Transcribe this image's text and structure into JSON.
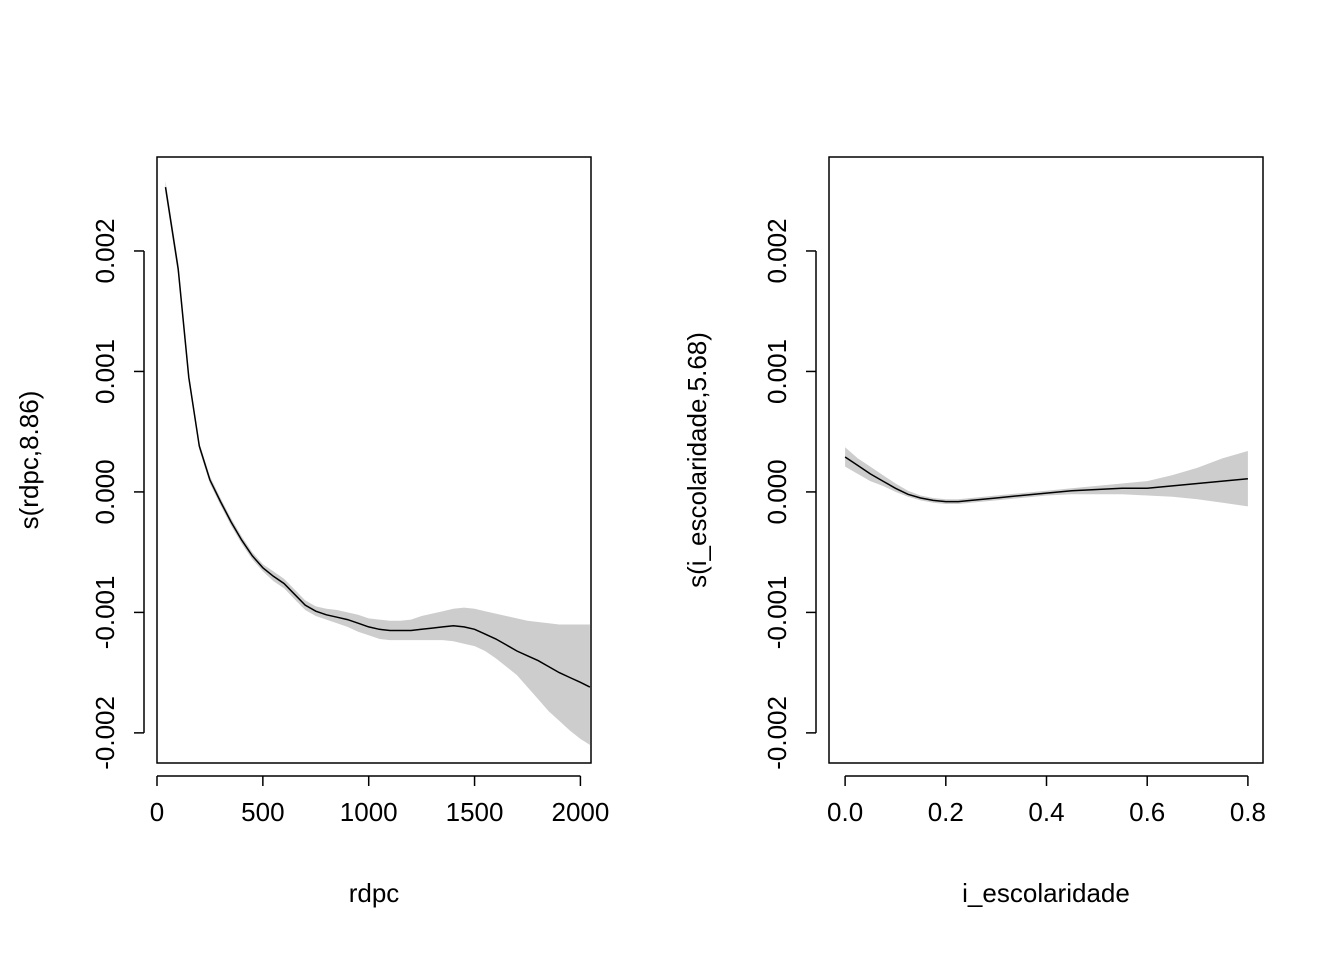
{
  "chart_data": [
    {
      "type": "line",
      "xlabel": "rdpc",
      "ylabel": "s(rdpc,8.86)",
      "xlim": [
        0,
        2050
      ],
      "ylim": [
        -0.00225,
        0.00278
      ],
      "xticks": [
        0,
        500,
        1000,
        1500,
        2000
      ],
      "xtick_labels": [
        "0",
        "500",
        "1000",
        "1500",
        "2000"
      ],
      "yticks": [
        -0.002,
        -0.001,
        0.0,
        0.001,
        0.002
      ],
      "ytick_labels": [
        "-0.002",
        "-0.001",
        "0.000",
        "0.001",
        "0.002"
      ],
      "series": [
        {
          "x": [
            40,
            100,
            150,
            200,
            250,
            300,
            350,
            400,
            450,
            500,
            550,
            600,
            650,
            700,
            750,
            800,
            850,
            900,
            950,
            1000,
            1050,
            1100,
            1150,
            1200,
            1250,
            1300,
            1350,
            1400,
            1450,
            1500,
            1550,
            1600,
            1650,
            1700,
            1750,
            1800,
            1850,
            1900,
            1950,
            2000,
            2045
          ],
          "y": [
            0.00253,
            0.00185,
            0.00095,
            0.00038,
            0.0001,
            -8e-05,
            -0.00025,
            -0.0004,
            -0.00053,
            -0.00063,
            -0.0007,
            -0.00076,
            -0.00085,
            -0.00094,
            -0.00099,
            -0.00102,
            -0.00104,
            -0.00106,
            -0.00109,
            -0.00112,
            -0.00114,
            -0.00115,
            -0.00115,
            -0.00115,
            -0.00114,
            -0.00113,
            -0.00112,
            -0.00111,
            -0.00112,
            -0.00114,
            -0.00118,
            -0.00122,
            -0.00127,
            -0.00132,
            -0.00136,
            -0.0014,
            -0.00145,
            -0.0015,
            -0.00154,
            -0.00158,
            -0.00162
          ],
          "lower": [
            0.00248,
            0.0018,
            0.00091,
            0.00035,
            7e-05,
            -0.00011,
            -0.00028,
            -0.00043,
            -0.00056,
            -0.00066,
            -0.00074,
            -0.0008,
            -0.00089,
            -0.00098,
            -0.00103,
            -0.00106,
            -0.00109,
            -0.00112,
            -0.00116,
            -0.00119,
            -0.00122,
            -0.00123,
            -0.00123,
            -0.00123,
            -0.00123,
            -0.00123,
            -0.00123,
            -0.00124,
            -0.00126,
            -0.00128,
            -0.00132,
            -0.00138,
            -0.00145,
            -0.00152,
            -0.00162,
            -0.00172,
            -0.00182,
            -0.0019,
            -0.00198,
            -0.00205,
            -0.0021
          ],
          "upper": [
            0.00258,
            0.0019,
            0.00099,
            0.00041,
            0.00013,
            -5e-05,
            -0.00022,
            -0.00037,
            -0.0005,
            -0.0006,
            -0.00066,
            -0.00072,
            -0.00081,
            -0.0009,
            -0.00095,
            -0.00097,
            -0.00098,
            -0.001,
            -0.00102,
            -0.00105,
            -0.00106,
            -0.00107,
            -0.00107,
            -0.00106,
            -0.00103,
            -0.00101,
            -0.00099,
            -0.00097,
            -0.00096,
            -0.00097,
            -0.00099,
            -0.00101,
            -0.00103,
            -0.00105,
            -0.00107,
            -0.00108,
            -0.00109,
            -0.0011,
            -0.0011,
            -0.0011,
            -0.0011
          ]
        }
      ]
    },
    {
      "type": "line",
      "xlabel": "i_escolaridade",
      "ylabel": "s(i_escolaridade,5.68)",
      "xlim": [
        -0.032,
        0.83
      ],
      "ylim": [
        -0.00225,
        0.00278
      ],
      "xticks": [
        0.0,
        0.2,
        0.4,
        0.6,
        0.8
      ],
      "xtick_labels": [
        "0.0",
        "0.2",
        "0.4",
        "0.6",
        "0.8"
      ],
      "yticks": [
        -0.002,
        -0.001,
        0.0,
        0.001,
        0.002
      ],
      "ytick_labels": [
        "-0.002",
        "-0.001",
        "0.000",
        "0.001",
        "0.002"
      ],
      "series": [
        {
          "x": [
            0.0,
            0.025,
            0.05,
            0.075,
            0.1,
            0.125,
            0.15,
            0.175,
            0.2,
            0.225,
            0.25,
            0.3,
            0.35,
            0.4,
            0.45,
            0.5,
            0.55,
            0.6,
            0.65,
            0.7,
            0.75,
            0.8
          ],
          "y": [
            0.00029,
            0.00022,
            0.00015,
            9e-05,
            3e-05,
            -2e-05,
            -5e-05,
            -7e-05,
            -8e-05,
            -8e-05,
            -7e-05,
            -5e-05,
            -3e-05,
            -1e-05,
            1e-05,
            2e-05,
            3e-05,
            3e-05,
            5e-05,
            7e-05,
            9e-05,
            0.00011
          ],
          "lower": [
            0.00021,
            0.00015,
            9e-05,
            5e-05,
            0.0,
            -4e-05,
            -7e-05,
            -9e-05,
            -0.0001,
            -0.0001,
            -9e-05,
            -7e-05,
            -5e-05,
            -3e-05,
            -2e-05,
            -2e-05,
            -2e-05,
            -3e-05,
            -4e-05,
            -6e-05,
            -9e-05,
            -0.00012
          ],
          "upper": [
            0.00037,
            0.00028,
            0.00021,
            0.00014,
            7e-05,
            1e-05,
            -3e-05,
            -5e-05,
            -6e-05,
            -6e-05,
            -5e-05,
            -3e-05,
            -1e-05,
            1e-05,
            3e-05,
            5e-05,
            7e-05,
            9e-05,
            0.00014,
            0.0002,
            0.00028,
            0.00034
          ]
        }
      ]
    }
  ]
}
